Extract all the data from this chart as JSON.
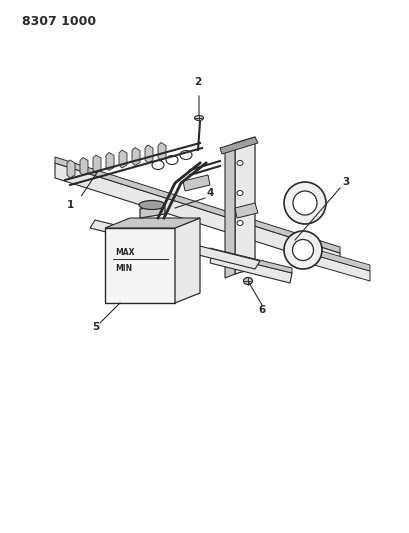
{
  "title_code": "8307 1000",
  "background_color": "#ffffff",
  "line_color": "#2a2a2a",
  "light_gray": "#e8e8e8",
  "mid_gray": "#c8c8c8",
  "dark_gray": "#a0a0a0",
  "title_fontsize": 9,
  "label_fontsize": 7.5,
  "figsize": [
    4.1,
    5.33
  ],
  "dpi": 100
}
